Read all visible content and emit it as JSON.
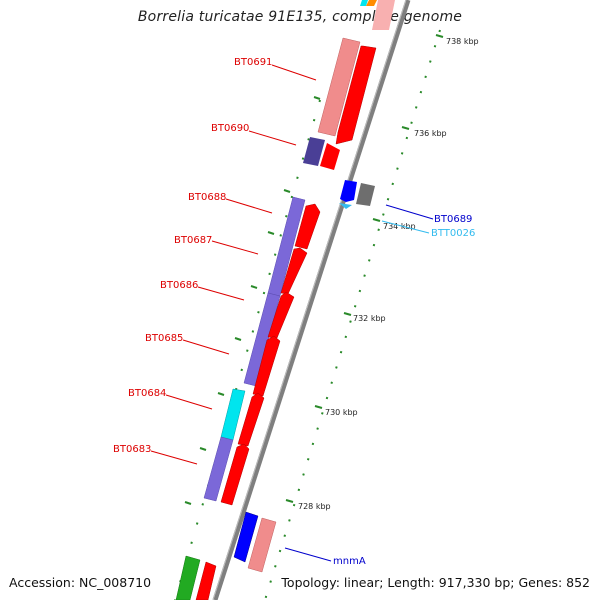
{
  "title": "Borrelia turicatae 91E135, complete genome",
  "accession_text": "Accession: NC_008710",
  "summary_text": "Topology: linear; Length: 917,330 bp; Genes: 852",
  "colors": {
    "backbone": "#7f7f7f",
    "forward_gene": "#ff0000",
    "forward_gene_light": "#f08c8c",
    "reverse_gene": "#7b68d8",
    "dark_gene": "#4a3f96",
    "cyan_gene": "#00e5ee",
    "blue_gene": "#0000ff",
    "gray_gene": "#6e6e6e",
    "green_gene": "#22aa22",
    "label_red": "#dd0000",
    "label_blue": "#0000cc",
    "label_cyan": "#33bbee",
    "tick_green": "#2a8a2a"
  },
  "scale_ticks": [
    "738 kbp",
    "736 kbp",
    "734 kbp",
    "732 kbp",
    "730 kbp",
    "728 kbp"
  ],
  "gene_labels": [
    "BT0691",
    "BT0690",
    "BT0688",
    "BT0687",
    "BT0686",
    "BT0685",
    "BT0684",
    "BT0683",
    "BT0689",
    "BTT0026",
    "mnmA"
  ]
}
